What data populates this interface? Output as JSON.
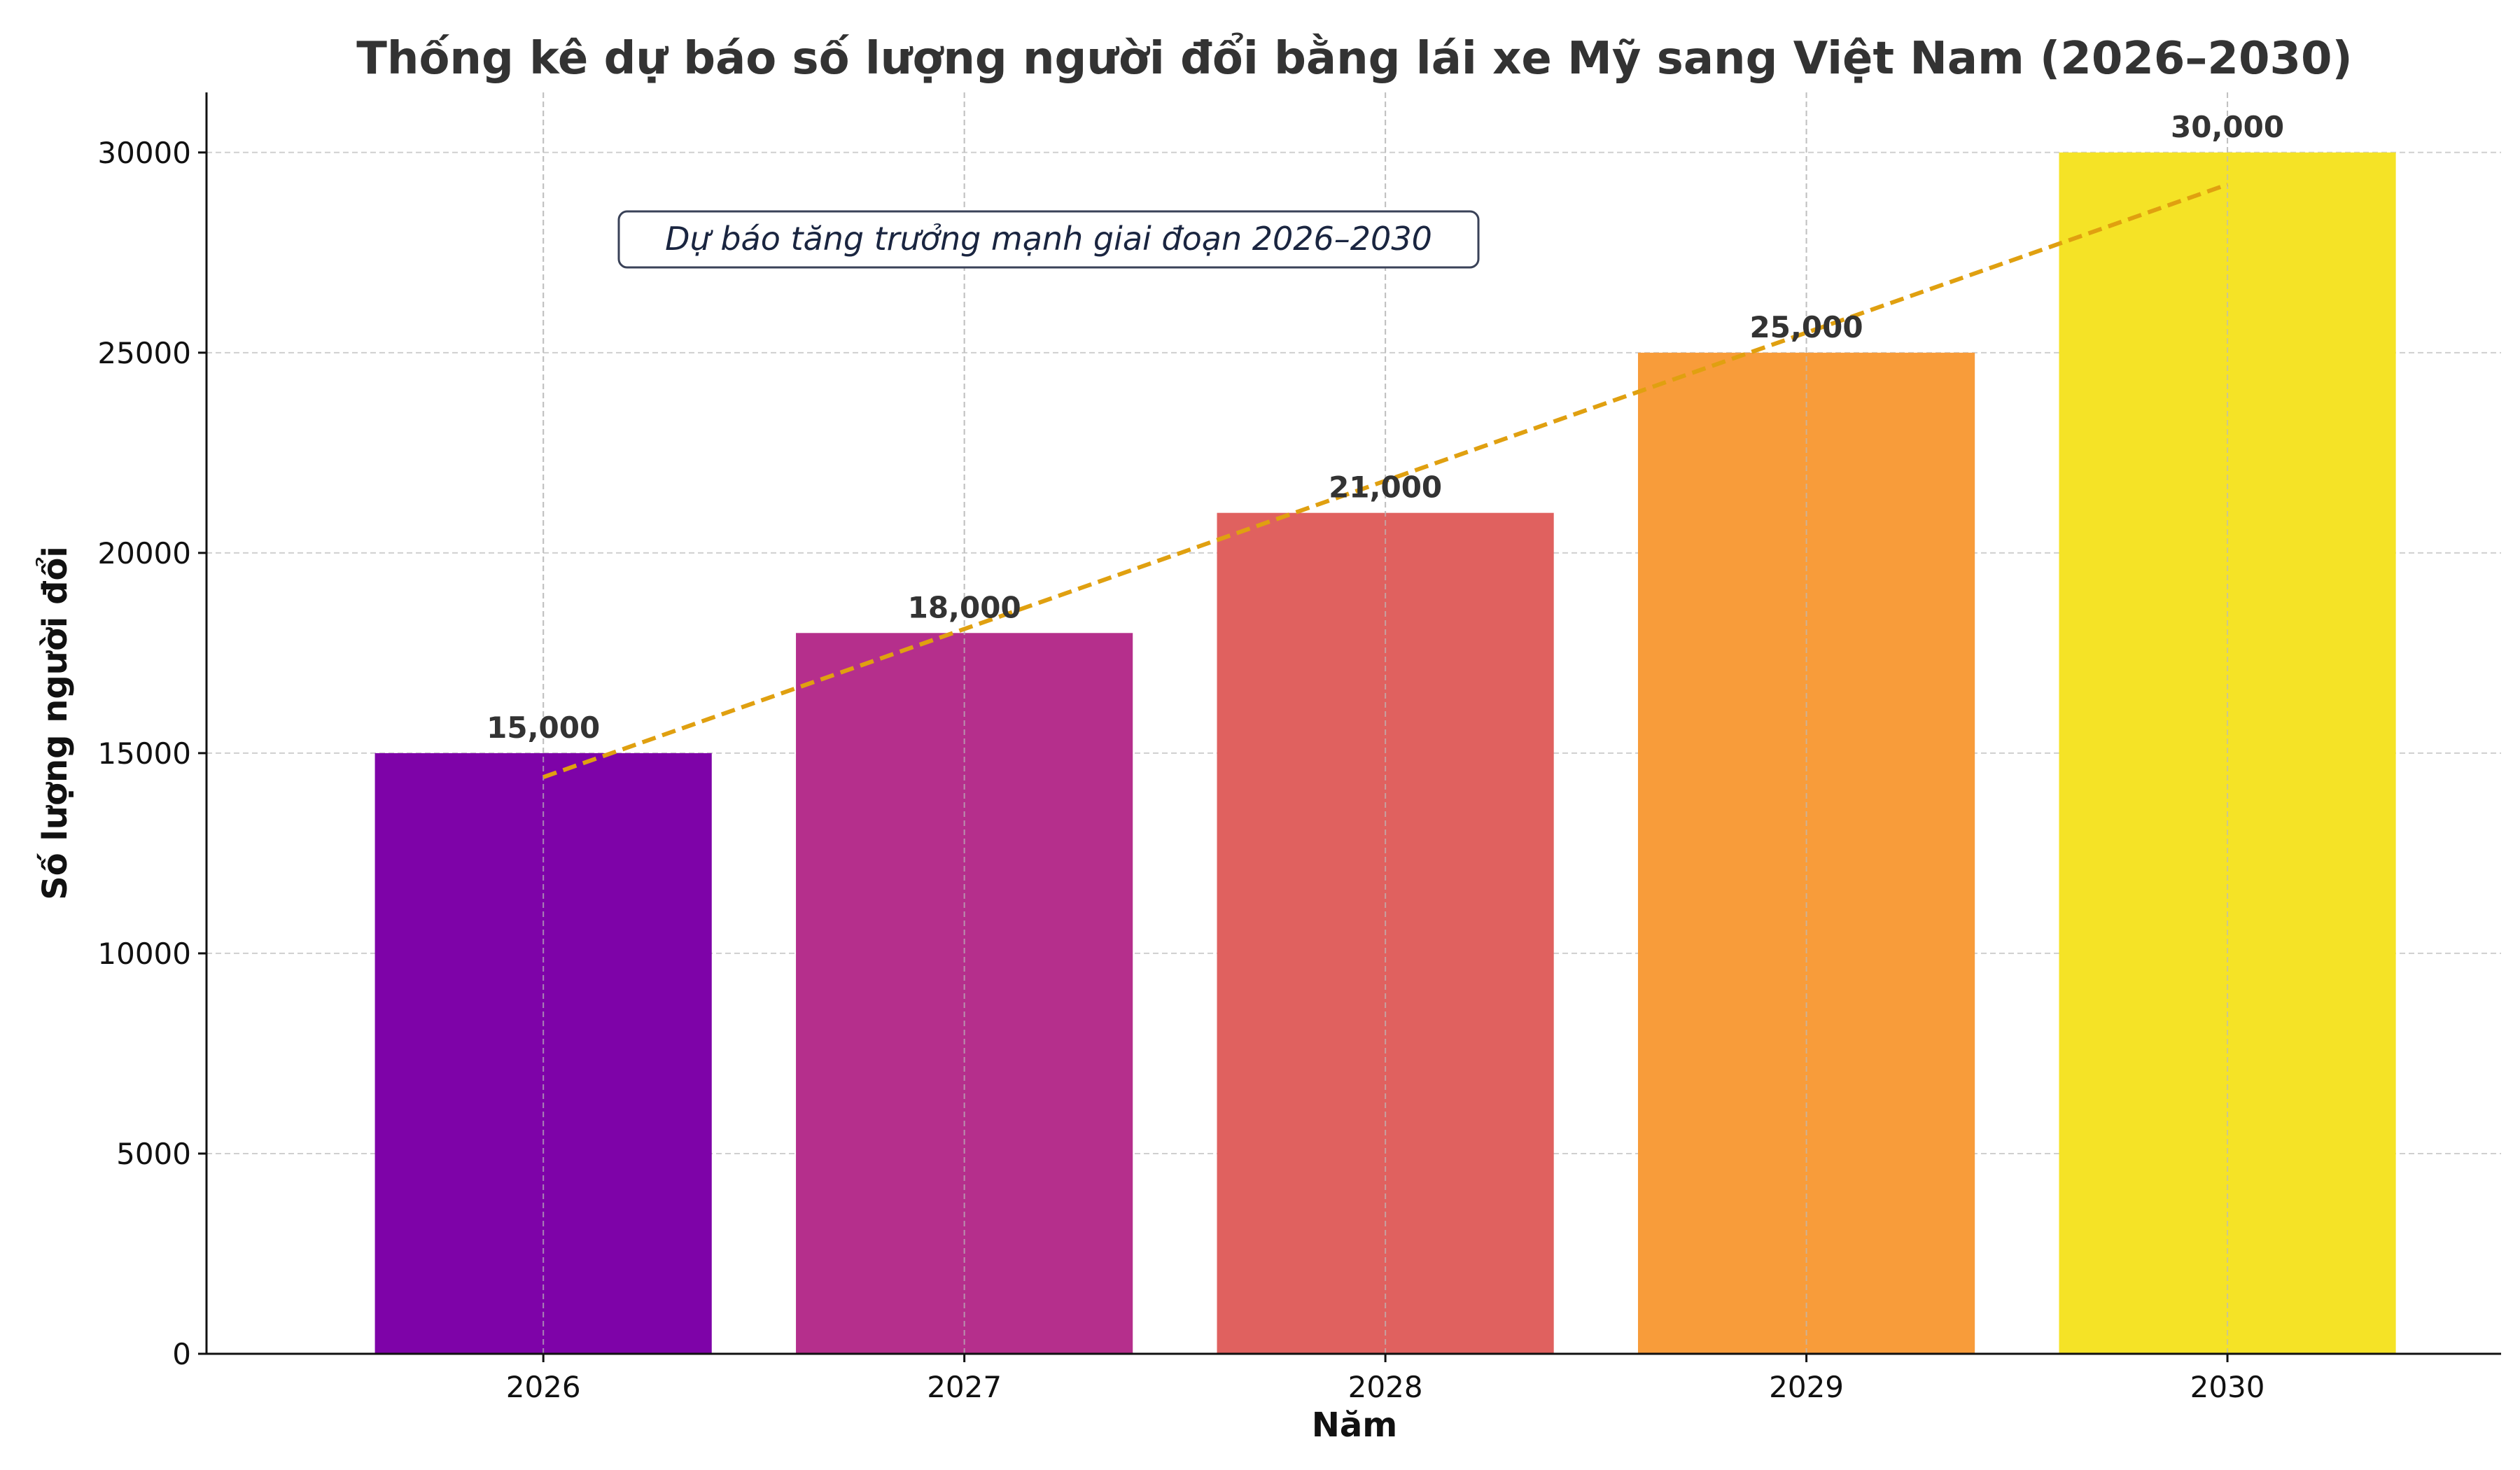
{
  "chart_data": {
    "type": "bar",
    "title": "Thống kê dự báo số lượng người đổi bằng lái xe Mỹ sang Việt Nam (2026–2030)",
    "xlabel": "Năm",
    "ylabel": "Số lượng người đổi",
    "categories": [
      "2026",
      "2027",
      "2028",
      "2029",
      "2030"
    ],
    "values": [
      15000,
      18000,
      21000,
      25000,
      30000
    ],
    "data_labels": [
      "15,000",
      "18,000",
      "21,000",
      "25,000",
      "30,000"
    ],
    "bar_colors": [
      "#7e03a8",
      "#b52f8c",
      "#e0615f",
      "#f89c3a",
      "#f5e326"
    ],
    "ylim": [
      0,
      31500
    ],
    "xlim": [
      2025.2,
      2030.65
    ],
    "yticks": [
      0,
      5000,
      10000,
      15000,
      20000,
      25000,
      30000
    ],
    "ytick_labels": [
      "0",
      "5000",
      "10000",
      "15000",
      "20000",
      "25000",
      "30000"
    ],
    "grid": true,
    "trend_line": {
      "style": "dashed",
      "color": "#e0a010",
      "x": [
        2026,
        2030
      ],
      "y": [
        14400,
        29200
      ]
    },
    "annotation": "Dự báo tăng trưởng mạnh giai đoạn 2026–2030"
  }
}
